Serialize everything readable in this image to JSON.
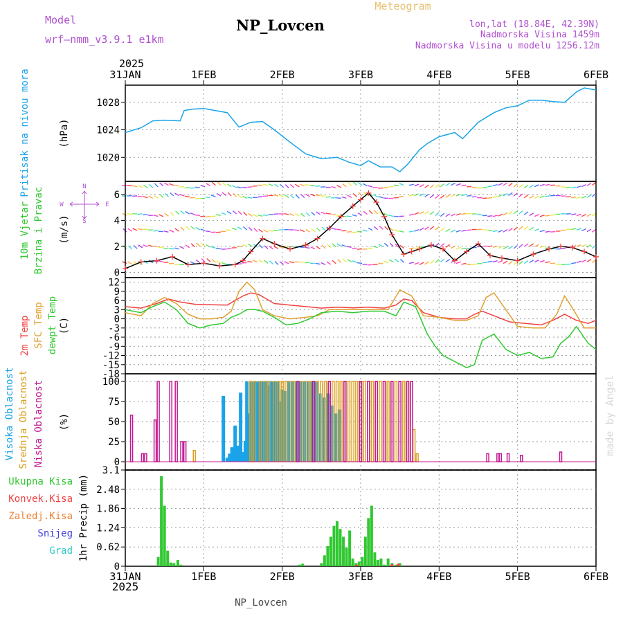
{
  "header": {
    "model_label": "Model",
    "model_name": "wrf–nmm_v3.9.1 e1km",
    "title": "NP_Lovcen",
    "product": "Meteogram",
    "location": "lon,lat (18.84E, 42.39N)",
    "altitude": "Nadmorska Visina 1459m",
    "model_altitude": "Nadmorska Visina u modelu 1256.12m",
    "footer": "NP_Lovcen",
    "watermark": "made by Angel"
  },
  "colors": {
    "pressure": "#1aa3e8",
    "temp2m": "#f04040",
    "sfc": "#e0a030",
    "dewpt": "#30c830",
    "high_cloud": "#1aa3e8",
    "mid_cloud": "#d9a020",
    "low_cloud": "#c01890",
    "precip": "#30c830",
    "conv": "#f04040",
    "frozen": "#f08030",
    "snow": "#4040e0",
    "hail": "#30c8c8",
    "header_purple": "#b050d0",
    "header_orange": "#e8c070"
  },
  "chart_data": [
    {
      "type": "line",
      "panel": "pressure",
      "label": "Pritisak na nivou mora",
      "ylabel": "(hPa)",
      "ylim": [
        1016.5,
        1030.5
      ],
      "yticks": [
        "1028",
        "1024",
        "1020"
      ],
      "ytick_values": [
        1028,
        1024,
        1020
      ],
      "series": [
        {
          "name": "Pritisak na nivou mora",
          "x": [
            0,
            0.2,
            0.35,
            0.5,
            0.7,
            0.75,
            0.85,
            1.0,
            1.15,
            1.3,
            1.45,
            1.6,
            1.75,
            1.9,
            2.1,
            2.3,
            2.5,
            2.7,
            2.85,
            3.0,
            3.1,
            3.25,
            3.4,
            3.5,
            3.6,
            3.75,
            3.85,
            4.0,
            4.2,
            4.3,
            4.5,
            4.7,
            4.85,
            5.0,
            5.15,
            5.3,
            5.45,
            5.6,
            5.75,
            5.85,
            6.0
          ],
          "y": [
            1023.6,
            1024.3,
            1025.3,
            1025.4,
            1025.3,
            1026.8,
            1027.0,
            1027.1,
            1026.8,
            1026.5,
            1024.4,
            1025.1,
            1025.2,
            1024.0,
            1022.2,
            1020.5,
            1019.8,
            1020.0,
            1019.3,
            1018.8,
            1019.5,
            1018.6,
            1018.6,
            1017.9,
            1019.0,
            1021.1,
            1022.0,
            1023.0,
            1023.6,
            1022.7,
            1025.1,
            1026.5,
            1027.2,
            1027.5,
            1028.3,
            1028.3,
            1028.1,
            1028.0,
            1029.5,
            1030.1,
            1029.8
          ]
        }
      ]
    },
    {
      "type": "line",
      "panel": "wind",
      "label": "10m Vjetar",
      "label2": "Brzina i Pravac",
      "ylabel": "(m/s)",
      "ylim": [
        -0.4,
        7.0
      ],
      "yticks": [
        "6",
        "4",
        "2",
        "0"
      ],
      "ytick_values": [
        6,
        4,
        2,
        0
      ],
      "compass": {
        "n": "N",
        "e": "E",
        "s": "S",
        "w": "W"
      },
      "series": [
        {
          "name": "10m Vjetar",
          "x": [
            0,
            0.2,
            0.4,
            0.6,
            0.8,
            1.0,
            1.2,
            1.4,
            1.5,
            1.6,
            1.75,
            1.9,
            2.1,
            2.3,
            2.45,
            2.6,
            2.75,
            2.9,
            3.0,
            3.1,
            3.2,
            3.3,
            3.4,
            3.55,
            3.65,
            3.75,
            3.9,
            4.05,
            4.2,
            4.35,
            4.5,
            4.65,
            4.8,
            5.0,
            5.2,
            5.4,
            5.55,
            5.7,
            5.85,
            6.0
          ],
          "y": [
            0.3,
            0.8,
            0.9,
            1.2,
            0.6,
            0.7,
            0.5,
            0.6,
            0.9,
            1.6,
            2.6,
            2.2,
            1.8,
            2.1,
            2.6,
            3.4,
            4.3,
            5.1,
            5.6,
            6.1,
            5.4,
            4.3,
            2.9,
            1.4,
            1.6,
            1.8,
            2.1,
            1.8,
            0.9,
            1.6,
            2.2,
            1.3,
            1.1,
            0.9,
            1.4,
            1.8,
            2.0,
            1.9,
            1.6,
            1.2
          ]
        }
      ]
    },
    {
      "type": "line",
      "panel": "temperature",
      "labels": [
        "2m Temp",
        "SFC Temp",
        "dewpt Temp"
      ],
      "ylabel": "(C)",
      "ylim": [
        -18,
        13.5
      ],
      "yticks": [
        "12",
        "9",
        "6",
        "3",
        "0",
        "-3",
        "-6",
        "-9",
        "-12",
        "-15",
        "-18"
      ],
      "ytick_values": [
        12,
        9,
        6,
        3,
        0,
        -3,
        -6,
        -9,
        -12,
        -15,
        -18
      ],
      "series": [
        {
          "name": "2m Temp",
          "x": [
            0,
            0.2,
            0.4,
            0.55,
            0.7,
            0.9,
            1.1,
            1.3,
            1.4,
            1.5,
            1.6,
            1.7,
            1.9,
            2.1,
            2.3,
            2.5,
            2.7,
            2.9,
            3.1,
            3.3,
            3.45,
            3.55,
            3.65,
            3.8,
            4.0,
            4.2,
            4.35,
            4.45,
            4.55,
            4.7,
            4.9,
            5.1,
            5.3,
            5.45,
            5.6,
            5.75,
            5.9,
            6.0
          ],
          "y": [
            4,
            3.5,
            5.0,
            6.5,
            5.5,
            4.7,
            4.6,
            4.5,
            6.0,
            7.5,
            8.5,
            8.0,
            5.0,
            4.5,
            4.0,
            3.5,
            3.8,
            3.6,
            3.8,
            3.5,
            4.5,
            6.5,
            6.0,
            2.0,
            0.5,
            0.0,
            0.0,
            1.5,
            2.5,
            1.0,
            -1.0,
            -1.5,
            -2.0,
            -0.5,
            1.5,
            -0.5,
            -1.5,
            -0.5
          ]
        },
        {
          "name": "SFC Temp",
          "x": [
            0,
            0.2,
            0.35,
            0.5,
            0.65,
            0.8,
            0.95,
            1.1,
            1.25,
            1.35,
            1.45,
            1.55,
            1.65,
            1.75,
            1.9,
            2.1,
            2.3,
            2.45,
            2.6,
            2.8,
            3.0,
            3.2,
            3.35,
            3.5,
            3.65,
            3.8,
            4.0,
            4.2,
            4.35,
            4.5,
            4.6,
            4.7,
            4.85,
            5.0,
            5.2,
            5.35,
            5.5,
            5.6,
            5.7,
            5.85,
            6.0
          ],
          "y": [
            2,
            1.0,
            5.0,
            7.0,
            5.0,
            1.5,
            0.0,
            0.0,
            0.5,
            2.5,
            9.0,
            12.0,
            9.5,
            3.0,
            1.0,
            0.0,
            0.5,
            1.0,
            3.0,
            3.0,
            3.0,
            3.0,
            3.0,
            9.5,
            7.5,
            1.0,
            0.5,
            -0.5,
            -0.5,
            1.0,
            7.0,
            8.5,
            3.0,
            -2.5,
            -3.0,
            -3.0,
            1.5,
            7.5,
            3.5,
            -3.0,
            -3.0
          ]
        },
        {
          "name": "dewpt Temp",
          "x": [
            0,
            0.2,
            0.35,
            0.5,
            0.65,
            0.8,
            0.95,
            1.1,
            1.25,
            1.35,
            1.45,
            1.55,
            1.65,
            1.75,
            1.9,
            2.05,
            2.2,
            2.35,
            2.5,
            2.7,
            2.9,
            3.1,
            3.3,
            3.45,
            3.55,
            3.7,
            3.85,
            3.95,
            4.05,
            4.2,
            4.35,
            4.45,
            4.55,
            4.7,
            4.85,
            5.0,
            5.15,
            5.3,
            5.45,
            5.55,
            5.65,
            5.75,
            5.9,
            6.0
          ],
          "y": [
            3,
            2.0,
            4.0,
            5.5,
            3.0,
            -1.5,
            -3.0,
            -2.0,
            -1.5,
            0.5,
            1.5,
            3.0,
            3.0,
            2.5,
            0.5,
            -2.0,
            -1.5,
            0.0,
            2.0,
            2.5,
            2.0,
            2.5,
            2.5,
            1.0,
            5.5,
            4.0,
            -5.0,
            -9.0,
            -12.0,
            -14.0,
            -16.0,
            -15.0,
            -7.0,
            -5.0,
            -10.0,
            -12.0,
            -11.0,
            -13.0,
            -12.5,
            -8.0,
            -6.0,
            -2.5,
            -8.0,
            -10.0
          ]
        }
      ]
    },
    {
      "type": "bar",
      "panel": "clouds",
      "labels": [
        "Visoka Oblacnost",
        "Srednja Oblacnost",
        "Niska Oblacnost"
      ],
      "ylabel": "(%)",
      "ylim": [
        0,
        100
      ],
      "yticks": [
        "100",
        "75",
        "50",
        "25",
        "0"
      ],
      "ytick_values": [
        100,
        75,
        50,
        25,
        0
      ],
      "series": [
        {
          "name": "Visoka Oblacnost",
          "x": [
            1.25,
            1.3,
            1.33,
            1.36,
            1.4,
            1.44,
            1.47,
            1.5,
            1.53,
            1.55,
            1.58,
            1.61,
            1.64,
            1.67,
            1.7,
            1.73,
            1.76,
            1.79,
            1.82,
            1.85,
            1.88,
            1.91,
            1.94,
            1.97,
            2.0,
            2.03,
            2.08,
            2.13,
            2.18,
            2.23,
            2.28,
            2.33,
            2.38,
            2.43,
            2.48,
            2.53,
            2.58,
            2.63,
            2.68,
            2.73
          ],
          "y": [
            82,
            5,
            10,
            18,
            45,
            20,
            86,
            12,
            26,
            100,
            60,
            100,
            100,
            100,
            100,
            100,
            100,
            100,
            95,
            100,
            100,
            100,
            100,
            75,
            90,
            88,
            100,
            100,
            100,
            100,
            100,
            100,
            100,
            100,
            85,
            80,
            85,
            70,
            60,
            65
          ]
        },
        {
          "name": "Srednja Oblacnost",
          "x": [
            0.88,
            1.6,
            1.65,
            1.72,
            1.78,
            1.83,
            1.9,
            1.95,
            2.0,
            2.05,
            2.1,
            2.15,
            2.2,
            2.25,
            2.3,
            2.35,
            2.4,
            2.45,
            2.5,
            2.55,
            2.6,
            2.65,
            2.7,
            2.75,
            2.8,
            2.85,
            2.9,
            2.95,
            3.0,
            3.05,
            3.1,
            3.15,
            3.2,
            3.25,
            3.3,
            3.35,
            3.4,
            3.45,
            3.5,
            3.55,
            3.6,
            3.65,
            3.68,
            3.72
          ],
          "y": [
            14,
            100,
            100,
            100,
            100,
            100,
            100,
            100,
            100,
            100,
            100,
            100,
            100,
            100,
            100,
            100,
            100,
            100,
            100,
            100,
            100,
            100,
            100,
            100,
            100,
            100,
            100,
            100,
            100,
            100,
            100,
            100,
            100,
            100,
            100,
            100,
            100,
            100,
            100,
            100,
            100,
            100,
            40,
            10
          ]
        },
        {
          "name": "Niska Oblacnost",
          "x": [
            0.08,
            0.22,
            0.26,
            0.38,
            0.42,
            0.58,
            0.65,
            0.72,
            0.76,
            2.2,
            2.4,
            2.6,
            2.8,
            3.0,
            3.1,
            3.2,
            3.3,
            3.4,
            3.5,
            3.6,
            3.65,
            4.62,
            4.75,
            4.78,
            4.88,
            5.05,
            5.55
          ],
          "y": [
            58,
            10,
            10,
            52,
            100,
            100,
            100,
            25,
            25,
            100,
            100,
            100,
            100,
            100,
            100,
            100,
            100,
            100,
            100,
            100,
            100,
            10,
            10,
            10,
            10,
            8,
            12
          ]
        }
      ]
    },
    {
      "type": "bar",
      "panel": "precip",
      "labels": [
        "Ukupna Kisa",
        "Konvek.Kisa",
        "Zaledj.Kisa",
        "Snijeg",
        "Grad"
      ],
      "ylabel": "1hr Precip (mm)",
      "ylim": [
        0,
        3.1
      ],
      "yticks": [
        "3.1",
        "2.48",
        "1.86",
        "1.24",
        "0.62",
        "0"
      ],
      "ytick_values": [
        3.1,
        2.48,
        1.86,
        1.24,
        0.62,
        0
      ],
      "x_labels": [
        "31JAN",
        "1FEB",
        "2FEB",
        "3FEB",
        "4FEB",
        "5FEB",
        "6FEB"
      ],
      "year": "2025",
      "series": [
        {
          "name": "Ukupna Kisa",
          "x": [
            0.42,
            0.46,
            0.5,
            0.54,
            0.58,
            0.62,
            0.67,
            0.71,
            2.22,
            2.26,
            2.5,
            2.54,
            2.58,
            2.62,
            2.66,
            2.7,
            2.74,
            2.78,
            2.82,
            2.86,
            2.9,
            2.94,
            2.98,
            3.02,
            3.06,
            3.1,
            3.14,
            3.18,
            3.22,
            3.26,
            3.3,
            3.35,
            3.4,
            3.45,
            3.5
          ],
          "y": [
            0.3,
            2.9,
            1.95,
            0.5,
            0.12,
            0.1,
            0.2,
            0.05,
            0.05,
            0.08,
            0.1,
            0.35,
            0.65,
            0.95,
            1.3,
            1.45,
            1.2,
            0.95,
            0.6,
            1.15,
            0.25,
            0.1,
            0.15,
            0.3,
            0.95,
            1.55,
            1.95,
            0.45,
            0.2,
            0.25,
            0.05,
            0.25,
            0.1,
            0.05,
            0.1
          ]
        },
        {
          "name": "Konvek.Kisa",
          "x": [
            2.95,
            3.4,
            3.48
          ],
          "y": [
            0.05,
            0.06,
            0.08
          ]
        }
      ]
    }
  ]
}
